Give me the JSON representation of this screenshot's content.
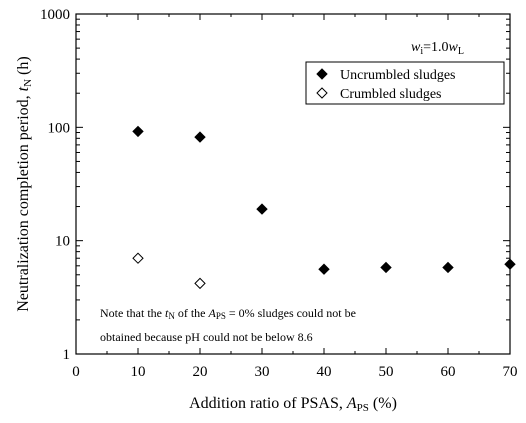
{
  "chart_data": {
    "type": "scatter",
    "xlabel": {
      "main": "Addition ratio of PSAS, ",
      "var": "A",
      "sub": "PS",
      "tail": " (%)"
    },
    "ylabel": {
      "main": "Neutralization completion period, ",
      "var": "t",
      "sub": "N",
      "tail": " (h)"
    },
    "xlim": [
      0,
      70
    ],
    "ylim": [
      1,
      1000
    ],
    "yscale": "log",
    "x_ticks": [
      "0",
      "10",
      "20",
      "30",
      "40",
      "50",
      "60",
      "70"
    ],
    "y_ticks": [
      "1",
      "10",
      "100",
      "1000"
    ],
    "condition": {
      "w": "w",
      "i": "i",
      "eq": "=1.0",
      "w2": "w",
      "L": "L"
    },
    "legend_position": "top-right",
    "series": [
      {
        "name": "Uncrumbled sludges",
        "marker": "filled-diamond",
        "x": [
          10,
          20,
          30,
          40,
          50,
          60,
          70
        ],
        "y": [
          92,
          82,
          19,
          5.6,
          5.8,
          5.8,
          6.2
        ]
      },
      {
        "name": "Crumbled sludges",
        "marker": "open-diamond",
        "x": [
          10,
          20
        ],
        "y": [
          7,
          4.2
        ]
      }
    ],
    "annotation": {
      "l1a": "Note that the ",
      "l1t": "t",
      "l1n": "N",
      "l1b": " of the ",
      "l1A": "A",
      "l1ps": "PS",
      "l1c": " = 0% sludges could not be",
      "l2": "obtained because pH could not be below 8.6"
    }
  }
}
